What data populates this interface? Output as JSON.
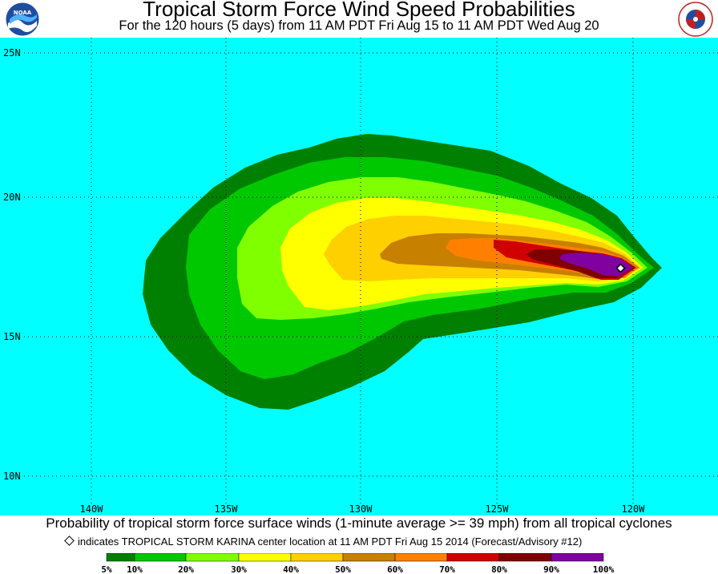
{
  "header": {
    "title": "Tropical Storm Force Wind Speed Probabilities",
    "subtitle": "For the 120 hours (5 days) from 11 AM PDT Fri Aug 15 to 11 AM PDT Wed Aug 20",
    "left_logo": "NOAA",
    "right_logo": "NATIONAL WEATHER SERVICE"
  },
  "map": {
    "background_color": "#00ffff",
    "lat_labels": [
      "25N",
      "20N",
      "15N",
      "10N"
    ],
    "lon_labels": [
      "140W",
      "135W",
      "130W",
      "125W",
      "120W"
    ],
    "storm_center": {
      "lat": 17.5,
      "lon": "119.9W"
    }
  },
  "footer": {
    "caption": "Probability of tropical storm force surface winds (1-minute average >= 39 mph) from all tropical cyclones",
    "marker_note": "indicates TROPICAL STORM KARINA center location at 11 AM PDT Fri Aug 15 2014 (Forecast/Advisory #12)"
  },
  "legend": {
    "colors": [
      "#008000",
      "#00c800",
      "#80ff00",
      "#ffff00",
      "#ffd000",
      "#c88000",
      "#ff8000",
      "#d00000",
      "#800000",
      "#8000a0"
    ],
    "labels": [
      "5%",
      "10%",
      "20%",
      "30%",
      "40%",
      "50%",
      "60%",
      "70%",
      "80%",
      "90%",
      "100%"
    ]
  }
}
